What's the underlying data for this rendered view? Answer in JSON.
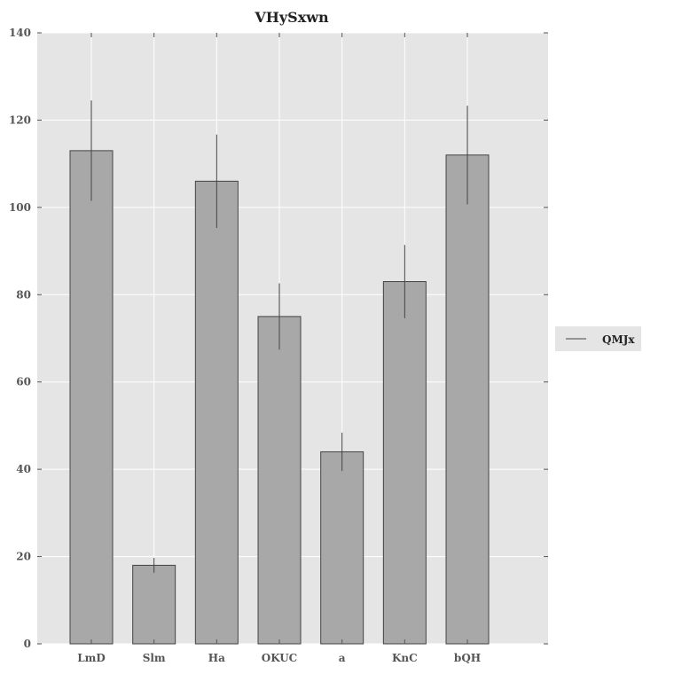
{
  "chart_data": {
    "type": "bar",
    "title": "VHySxwn",
    "xlabel": "",
    "ylabel": "",
    "categories": [
      "LmD",
      "Slm",
      "Ha",
      "OKUC",
      "a",
      "KnC",
      "bQH"
    ],
    "series": [
      {
        "name": "QMJx",
        "values": [
          113,
          18,
          106,
          75,
          44,
          83,
          112
        ],
        "error": [
          11.5,
          1.7,
          10.7,
          7.6,
          4.4,
          8.4,
          11.3
        ]
      }
    ],
    "ylim": [
      0,
      140
    ],
    "yticks": [
      0,
      20,
      40,
      60,
      80,
      100,
      120,
      140
    ],
    "ytick_labels": [
      "0",
      "20",
      "40",
      "60",
      "80",
      "100",
      "120",
      "140"
    ],
    "grid": true,
    "legend_position": "right",
    "colors": {
      "bar": "#a8a8a8",
      "bar_edge": "#444444",
      "plot_background": "#e5e5e5",
      "grid": "#ffffff",
      "error_bar": "#444444",
      "legend_background": "#e5e5e5"
    }
  }
}
